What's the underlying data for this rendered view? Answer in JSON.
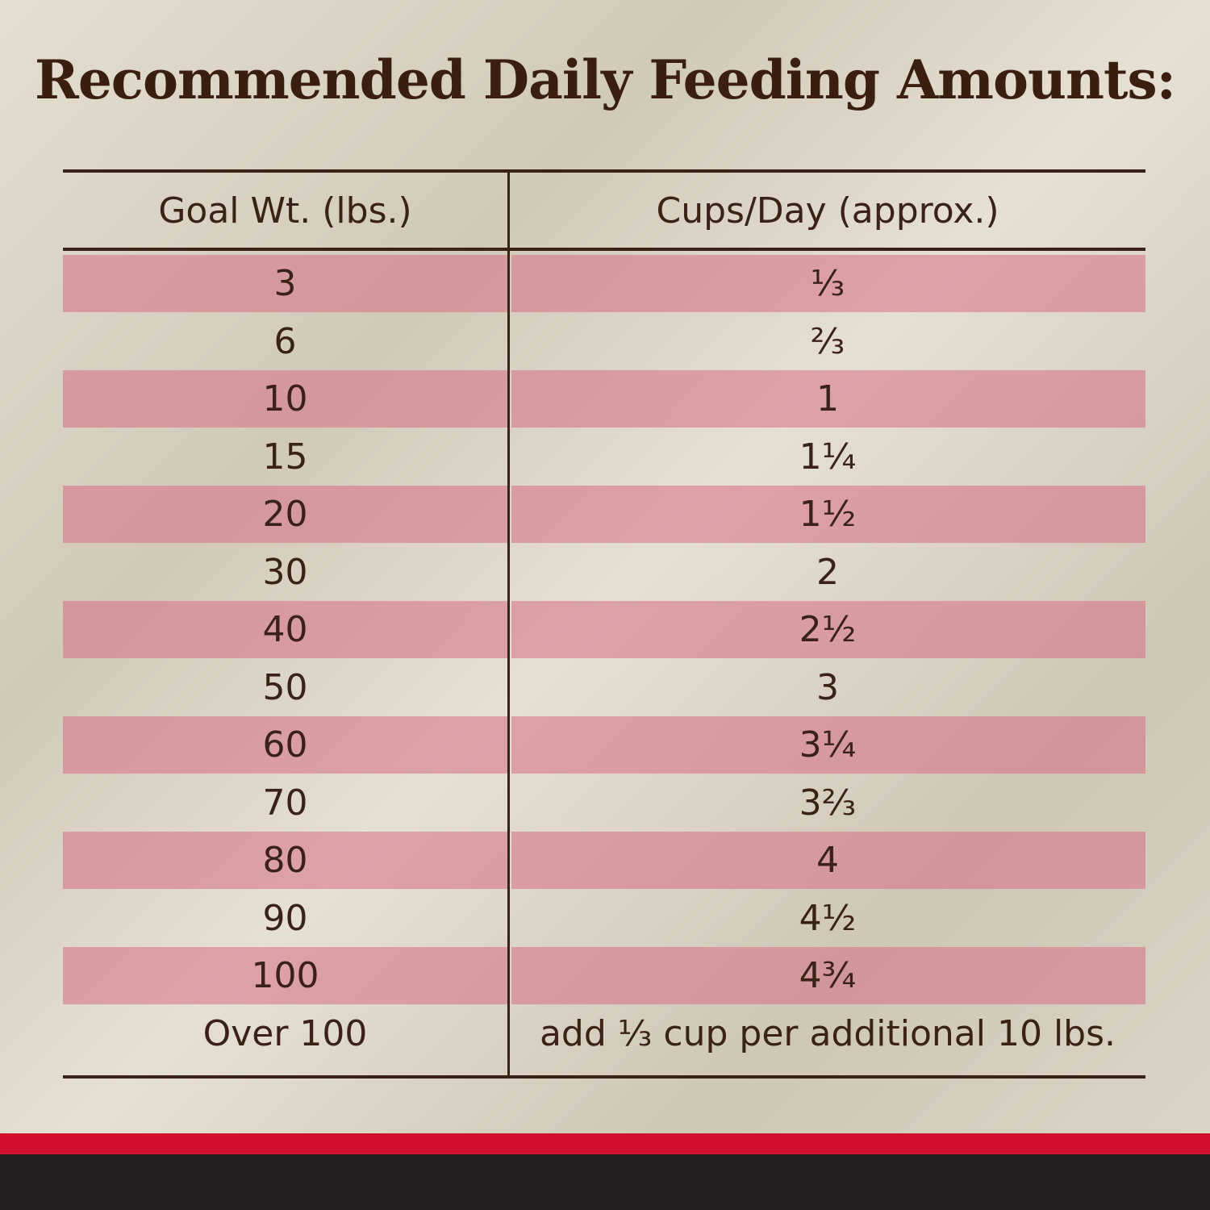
{
  "title": "Recommended Daily Feeding Amounts:",
  "table": {
    "header": [
      "Goal Wt. (lbs.)",
      "Cups/Day (approx.)"
    ],
    "rows": [
      [
        "3",
        "⅓"
      ],
      [
        "6",
        "⅔"
      ],
      [
        "10",
        "1"
      ],
      [
        "15",
        "1¼"
      ],
      [
        "20",
        "1½"
      ],
      [
        "30",
        "2"
      ],
      [
        "40",
        "2½"
      ],
      [
        "50",
        "3"
      ],
      [
        "60",
        "3¼"
      ],
      [
        "70",
        "3⅔"
      ],
      [
        "80",
        "4"
      ],
      [
        "90",
        "4½"
      ],
      [
        "100",
        "4¾"
      ],
      [
        "Over 100",
        "add ⅓ cup per additional 10 lbs."
      ]
    ]
  }
}
